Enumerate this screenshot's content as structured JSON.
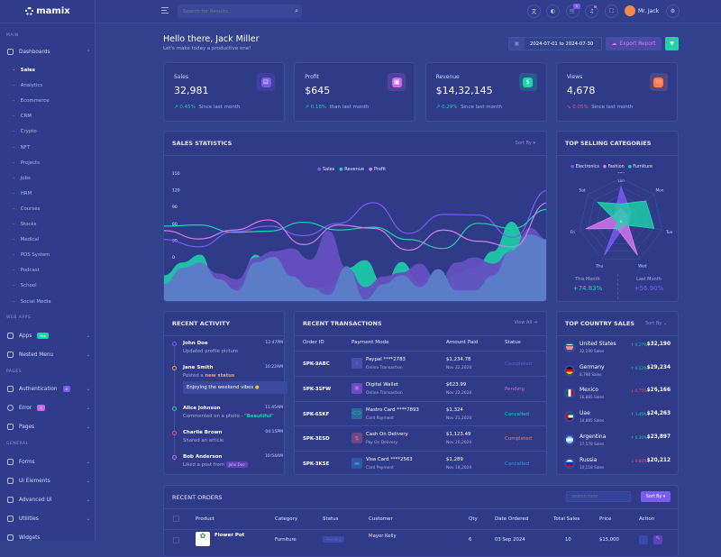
{
  "brand": {
    "name": "mamix"
  },
  "header": {
    "search_placeholder": "Search for Results...",
    "user_name": "Mr. Jack",
    "cart_count": "5"
  },
  "sidebar": {
    "sections": [
      "MAIN",
      "WEB APPS",
      "PAGES",
      "GENERAL"
    ],
    "dashboards": "Dashboards",
    "dashboard_items": [
      "Sales",
      "Analytics",
      "Ecommerce",
      "CRM",
      "Crypto",
      "NFT",
      "Projects",
      "Jobs",
      "HRM",
      "Courses",
      "Stocks",
      "Medical",
      "POS System",
      "Podcast",
      "School",
      "Social Media"
    ],
    "apps": {
      "label": "Apps",
      "badge": "Hot"
    },
    "nested": "Nested Menu",
    "auth": {
      "label": "Authentication",
      "badge": "8"
    },
    "error": {
      "label": "Error",
      "badge": "3"
    },
    "pages": "Pages",
    "general": [
      "Forms",
      "Ui Elements",
      "Advanced UI",
      "Utilities",
      "Widgets"
    ]
  },
  "welcome": {
    "title": "Hello there, Jack Miller",
    "subtitle": "Let's make today a productive one!",
    "date_range": "2024-07-01 to 2024-07-30",
    "export_label": "Export Report"
  },
  "stats": [
    {
      "label": "Sales",
      "value": "32,981",
      "change": "0.45%",
      "note": "Since last month",
      "trend": "up",
      "color": "#7a5cf0"
    },
    {
      "label": "Profit",
      "value": "$645",
      "change": "0.18%",
      "note": "than last month",
      "trend": "up",
      "color": "#c86ae8"
    },
    {
      "label": "Revenue",
      "value": "$14,32,145",
      "change": "0.29%",
      "note": "Since last month",
      "trend": "up",
      "color": "#1dd3aa"
    },
    {
      "label": "Views",
      "value": "4,678",
      "change": "0.05%",
      "note": "Since last month",
      "trend": "down",
      "color": "#ff7b52"
    }
  ],
  "sales_statistics": {
    "title": "SALES STATISTICS",
    "sort_label": "Sort By"
  },
  "chart_data": [
    {
      "type": "line",
      "title": "SALES STATISTICS",
      "yticks": [
        0,
        30,
        60,
        90,
        120,
        150
      ],
      "ylim": [
        -80,
        150
      ],
      "grid": false,
      "legend": "top",
      "series": [
        {
          "name": "Sales",
          "color": "#7a5cf0",
          "values": [
            31,
            18,
            45,
            55,
            38,
            60,
            97,
            42,
            76,
            75,
            35,
            119
          ]
        },
        {
          "name": "Revenue",
          "color": "#1dd3aa",
          "values": [
            55,
            57,
            44,
            46,
            62,
            48,
            53,
            31,
            15,
            60,
            51,
            85
          ]
        },
        {
          "name": "Profit",
          "color": "#d77bf0",
          "values": [
            47,
            32,
            48,
            66,
            22,
            57,
            51,
            12,
            48,
            28,
            18,
            97
          ]
        }
      ],
      "areas": [
        {
          "color": "#1fc8a8",
          "values": [
            -33,
            -10,
            4,
            -68,
            -55,
            4,
            -30,
            -54,
            -54,
            -54,
            -20,
            -6,
            -49,
            -9,
            -46,
            -49,
            -30,
            -20,
            10,
            63,
            20,
            31
          ]
        },
        {
          "color": "#6550c0",
          "values": [
            -49,
            -20,
            -12,
            -30,
            -40,
            -1,
            10,
            15,
            -5,
            47,
            -20,
            -54,
            -35,
            -28,
            -12,
            -44,
            -10,
            -1,
            -12,
            10,
            52,
            31
          ]
        },
        {
          "color": "#5b7fc8",
          "values": [
            -49,
            -20,
            -10,
            -40,
            -60,
            -10,
            0,
            -35,
            -55,
            -68,
            -17,
            -76,
            -49,
            -33,
            -54,
            -22,
            -60,
            -60,
            -33,
            12,
            40,
            31
          ]
        }
      ]
    },
    {
      "type": "radar",
      "title": "TOP SELLING CATEGORIES",
      "axes": [
        "Sun",
        "Mon",
        "Tue",
        "Wed",
        "Thu",
        "Fri",
        "Sat"
      ],
      "range": [
        0,
        100
      ],
      "legend": "top",
      "series": [
        {
          "name": "Electronics",
          "color": "#7a5cf0",
          "values": [
            80,
            30,
            20,
            15,
            90,
            10,
            20
          ]
        },
        {
          "name": "Fashion",
          "color": "#d77bf0",
          "values": [
            30,
            20,
            15,
            90,
            20,
            85,
            20
          ]
        },
        {
          "name": "Furniture",
          "color": "#1dd3aa",
          "values": [
            40,
            75,
            80,
            10,
            25,
            10,
            70
          ]
        }
      ]
    }
  ],
  "top_selling": {
    "title": "TOP SELLING CATEGORIES",
    "this_month_label": "This Month",
    "this_month": "+74.83%",
    "last_month_label": "Last Month",
    "last_month": "+56.90%",
    "tick_max": "100",
    "tick_min": "0"
  },
  "activity": {
    "title": "RECENT ACTIVITY",
    "items": [
      {
        "name": "John Doe",
        "time": "12:47PM",
        "desc": "Updated profile picture",
        "color": "#7a5cf0"
      },
      {
        "name": "Jane Smith",
        "time": "10:22AM",
        "desc": "Posted a ",
        "highlight": "new status",
        "quote": "Enjoying the weekend vibes",
        "color": "#f5a452"
      },
      {
        "name": "Alice Johnson",
        "time": "11:45AM",
        "desc": "Commented on a photo - ",
        "highlight": "\"Beautiful\"",
        "color": "#1dd3aa"
      },
      {
        "name": "Charlie Brown",
        "time": "04:15PM",
        "desc": "Shared an article",
        "color": "#f0566f"
      },
      {
        "name": "Bob Anderson",
        "time": "10:54AM",
        "desc": "Liked a post from ",
        "tag": "John Doe",
        "color": "#c86ae8"
      }
    ]
  },
  "transactions": {
    "title": "RECENT TRANSACTIONS",
    "view_all": "View All",
    "headers": [
      "Order ID",
      "Payment Mode",
      "Amount Paid",
      "Status"
    ],
    "rows": [
      {
        "id": "SPK-9ABC",
        "mode": "Paypal ****2783",
        "type": "Online Transaction",
        "amount": "$1,234.78",
        "date": "Nov 22,2024",
        "status": "Completed",
        "status_color": "#5b5cd6",
        "icon_color": "#4a4fa8"
      },
      {
        "id": "SPK-3SFW",
        "mode": "Digital Wallet",
        "type": "Online Transaction",
        "amount": "$623.99",
        "date": "Nov 22,2024",
        "status": "Pending",
        "status_color": "#c86ae8",
        "icon_color": "#6a4ec0"
      },
      {
        "id": "SPK-6SKF",
        "mode": "Mastro Card ****7893",
        "type": "Card Payment",
        "amount": "$1,324",
        "date": "Nov 21,2024",
        "status": "Cancelled",
        "status_color": "#1dd3aa",
        "icon_color": "#2a6a9c"
      },
      {
        "id": "SPK-3ESD",
        "mode": "Cash On Delivery",
        "type": "Pay On Delivery",
        "amount": "$1,123.49",
        "date": "Nov 20,2024",
        "status": "Completed",
        "status_color": "#ff7b52",
        "icon_color": "#6a4a8c"
      },
      {
        "id": "SPK-3KSE",
        "mode": "Visa Card ****2563",
        "type": "Card Payment",
        "amount": "$1,289",
        "date": "Nov 18,2024",
        "status": "Cancelled",
        "status_color": "#2f9ee0",
        "icon_color": "#2f5aa8"
      }
    ]
  },
  "countries": {
    "title": "TOP COUNTRY SALES",
    "sort_label": "Sort By",
    "rows": [
      {
        "name": "United States",
        "sales": "32,190 Sales",
        "change": "0.27%",
        "trend": "up",
        "value": "$32,190"
      },
      {
        "name": "Germany",
        "sales": "8,798 Sales",
        "change": "0.12%",
        "trend": "up",
        "value": "$29,234"
      },
      {
        "name": "Mexico",
        "sales": "16,885 Sales",
        "change": "0.75%",
        "trend": "down",
        "value": "$26,166"
      },
      {
        "name": "Uae",
        "sales": "14,885 Sales",
        "change": "1.45%",
        "trend": "up",
        "value": "$24,263"
      },
      {
        "name": "Argentina",
        "sales": "17,578 Sales",
        "change": "0.36%",
        "trend": "up",
        "value": "$23,897"
      },
      {
        "name": "Russia",
        "sales": "10,118 Sales",
        "change": "0.68%",
        "trend": "down",
        "value": "$20,212"
      }
    ]
  },
  "orders": {
    "title": "RECENT ORDERS",
    "search_placeholder": "Search Here",
    "sort_label": "Sort By",
    "headers": [
      "Product",
      "Category",
      "Status",
      "Customer",
      "Qty",
      "Date Ordered",
      "Total Sales",
      "Price",
      "Action"
    ],
    "rows": [
      {
        "product": "Flower Pot",
        "category": "Furniture",
        "status": "Pending",
        "customer": "Mayor Kelly",
        "qty": "6",
        "date": "03 Sep 2024",
        "total": "10",
        "price": "$15,000"
      }
    ]
  }
}
